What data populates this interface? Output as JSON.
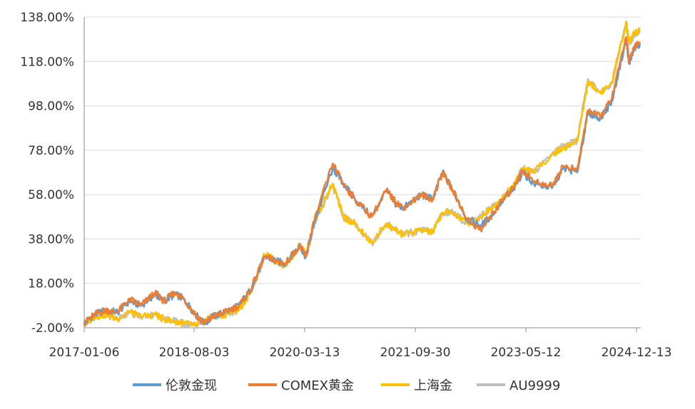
{
  "chart_data": {
    "type": "line",
    "xlabel": "",
    "ylabel": "",
    "x_ticks": [
      "2017-01-06",
      "2018-08-03",
      "2020-03-13",
      "2021-09-30",
      "2023-05-12",
      "2024-12-13"
    ],
    "y_ticks": [
      "-2.00%",
      "18.00%",
      "38.00%",
      "58.00%",
      "78.00%",
      "98.00%",
      "118.00%",
      "138.00%"
    ],
    "ylim": [
      -2,
      138
    ],
    "xlim": [
      "2017-01-06",
      "2025-01-15"
    ],
    "grid": "horizontal",
    "legend": "bottom",
    "series": [
      {
        "name": "伦敦金现",
        "color": "#5b9bd5",
        "points": [
          [
            "2017-01-06",
            0
          ],
          [
            "2017-03-01",
            4
          ],
          [
            "2017-05-01",
            6
          ],
          [
            "2017-07-01",
            5
          ],
          [
            "2017-09-01",
            10
          ],
          [
            "2017-11-01",
            8
          ],
          [
            "2018-01-15",
            13
          ],
          [
            "2018-03-01",
            10
          ],
          [
            "2018-05-01",
            13
          ],
          [
            "2018-06-15",
            11
          ],
          [
            "2018-08-15",
            4
          ],
          [
            "2018-10-01",
            0
          ],
          [
            "2018-11-15",
            3
          ],
          [
            "2019-01-15",
            5
          ],
          [
            "2019-04-01",
            8
          ],
          [
            "2019-06-01",
            15
          ],
          [
            "2019-08-15",
            30
          ],
          [
            "2019-10-15",
            28
          ],
          [
            "2019-12-01",
            27
          ],
          [
            "2020-02-15",
            35
          ],
          [
            "2020-03-19",
            30
          ],
          [
            "2020-05-01",
            45
          ],
          [
            "2020-08-07",
            70
          ],
          [
            "2020-10-01",
            63
          ],
          [
            "2020-12-01",
            56
          ],
          [
            "2021-03-01",
            48
          ],
          [
            "2021-05-15",
            60
          ],
          [
            "2021-07-01",
            54
          ],
          [
            "2021-08-15",
            52
          ],
          [
            "2021-11-15",
            58
          ],
          [
            "2022-01-15",
            56
          ],
          [
            "2022-03-08",
            68
          ],
          [
            "2022-05-01",
            60
          ],
          [
            "2022-07-15",
            47
          ],
          [
            "2022-09-26",
            44
          ],
          [
            "2022-11-15",
            48
          ],
          [
            "2023-01-15",
            55
          ],
          [
            "2023-03-15",
            60
          ],
          [
            "2023-05-04",
            68
          ],
          [
            "2023-07-01",
            63
          ],
          [
            "2023-10-05",
            61
          ],
          [
            "2023-12-04",
            70
          ],
          [
            "2024-02-15",
            68
          ],
          [
            "2024-04-12",
            95
          ],
          [
            "2024-06-15",
            92
          ],
          [
            "2024-08-15",
            100
          ],
          [
            "2024-10-30",
            128
          ],
          [
            "2024-11-14",
            117
          ],
          [
            "2024-12-13",
            124
          ],
          [
            "2025-01-10",
            126
          ]
        ]
      },
      {
        "name": "COMEX黄金",
        "color": "#ed7d31",
        "points": [
          [
            "2017-01-06",
            0
          ],
          [
            "2017-03-01",
            4
          ],
          [
            "2017-05-01",
            6
          ],
          [
            "2017-07-01",
            5
          ],
          [
            "2017-09-01",
            11
          ],
          [
            "2017-11-01",
            8
          ],
          [
            "2018-01-15",
            14
          ],
          [
            "2018-03-01",
            10
          ],
          [
            "2018-05-01",
            14
          ],
          [
            "2018-06-15",
            11
          ],
          [
            "2018-08-15",
            4
          ],
          [
            "2018-10-01",
            0
          ],
          [
            "2018-11-15",
            3
          ],
          [
            "2019-01-15",
            5
          ],
          [
            "2019-04-01",
            8
          ],
          [
            "2019-06-01",
            15
          ],
          [
            "2019-08-15",
            30
          ],
          [
            "2019-10-15",
            28
          ],
          [
            "2019-12-01",
            27
          ],
          [
            "2020-02-15",
            35
          ],
          [
            "2020-03-19",
            30
          ],
          [
            "2020-05-01",
            46
          ],
          [
            "2020-08-07",
            72
          ],
          [
            "2020-10-01",
            63
          ],
          [
            "2020-12-01",
            56
          ],
          [
            "2021-03-01",
            48
          ],
          [
            "2021-05-15",
            60
          ],
          [
            "2021-07-01",
            55
          ],
          [
            "2021-08-15",
            52
          ],
          [
            "2021-11-15",
            58
          ],
          [
            "2022-01-15",
            56
          ],
          [
            "2022-03-08",
            68
          ],
          [
            "2022-05-01",
            60
          ],
          [
            "2022-07-15",
            47
          ],
          [
            "2022-09-26",
            42
          ],
          [
            "2022-11-15",
            48
          ],
          [
            "2023-01-15",
            55
          ],
          [
            "2023-03-15",
            61
          ],
          [
            "2023-05-04",
            69
          ],
          [
            "2023-07-01",
            64
          ],
          [
            "2023-10-05",
            62
          ],
          [
            "2023-12-04",
            71
          ],
          [
            "2024-02-15",
            69
          ],
          [
            "2024-04-12",
            96
          ],
          [
            "2024-06-15",
            93
          ],
          [
            "2024-08-15",
            101
          ],
          [
            "2024-10-30",
            129
          ],
          [
            "2024-11-14",
            118
          ],
          [
            "2024-12-13",
            125
          ],
          [
            "2025-01-10",
            127
          ]
        ]
      },
      {
        "name": "上海金",
        "color": "#ffc000",
        "points": [
          [
            "2017-01-06",
            0
          ],
          [
            "2017-03-01",
            3
          ],
          [
            "2017-05-01",
            4
          ],
          [
            "2017-07-01",
            2
          ],
          [
            "2017-09-01",
            5
          ],
          [
            "2017-11-01",
            3
          ],
          [
            "2018-01-15",
            4
          ],
          [
            "2018-03-01",
            2
          ],
          [
            "2018-05-01",
            1
          ],
          [
            "2018-06-15",
            0
          ],
          [
            "2018-08-15",
            -1
          ],
          [
            "2018-10-01",
            1
          ],
          [
            "2018-11-15",
            3
          ],
          [
            "2019-01-15",
            4
          ],
          [
            "2019-04-01",
            6
          ],
          [
            "2019-06-01",
            14
          ],
          [
            "2019-08-15",
            31
          ],
          [
            "2019-10-15",
            28
          ],
          [
            "2019-12-01",
            26
          ],
          [
            "2020-02-15",
            35
          ],
          [
            "2020-03-19",
            31
          ],
          [
            "2020-05-01",
            46
          ],
          [
            "2020-08-07",
            63
          ],
          [
            "2020-10-01",
            48
          ],
          [
            "2020-12-01",
            45
          ],
          [
            "2021-03-01",
            36
          ],
          [
            "2021-05-15",
            45
          ],
          [
            "2021-07-01",
            42
          ],
          [
            "2021-08-15",
            40
          ],
          [
            "2021-11-15",
            42
          ],
          [
            "2022-01-15",
            41
          ],
          [
            "2022-03-08",
            50
          ],
          [
            "2022-05-01",
            50
          ],
          [
            "2022-07-15",
            45
          ],
          [
            "2022-09-26",
            48
          ],
          [
            "2022-11-15",
            52
          ],
          [
            "2023-01-15",
            56
          ],
          [
            "2023-03-15",
            62
          ],
          [
            "2023-05-04",
            70
          ],
          [
            "2023-07-01",
            68
          ],
          [
            "2023-10-05",
            76
          ],
          [
            "2023-12-04",
            79
          ],
          [
            "2024-02-15",
            82
          ],
          [
            "2024-04-12",
            109
          ],
          [
            "2024-06-15",
            104
          ],
          [
            "2024-08-15",
            108
          ],
          [
            "2024-10-30",
            136
          ],
          [
            "2024-11-14",
            127
          ],
          [
            "2024-12-13",
            131
          ],
          [
            "2025-01-10",
            132
          ]
        ]
      },
      {
        "name": "AU9999",
        "color": "#bfbfbf",
        "points": [
          [
            "2017-01-06",
            0
          ],
          [
            "2017-03-01",
            3
          ],
          [
            "2017-05-01",
            4
          ],
          [
            "2017-07-01",
            2
          ],
          [
            "2017-09-01",
            5
          ],
          [
            "2017-11-01",
            3
          ],
          [
            "2018-01-15",
            4
          ],
          [
            "2018-03-01",
            2
          ],
          [
            "2018-05-01",
            1
          ],
          [
            "2018-06-15",
            0
          ],
          [
            "2018-08-15",
            -1
          ],
          [
            "2018-10-01",
            1
          ],
          [
            "2018-11-15",
            3
          ],
          [
            "2019-01-15",
            4
          ],
          [
            "2019-04-01",
            6
          ],
          [
            "2019-06-01",
            14
          ],
          [
            "2019-08-15",
            30
          ],
          [
            "2019-10-15",
            28
          ],
          [
            "2019-12-01",
            26
          ],
          [
            "2020-02-15",
            35
          ],
          [
            "2020-03-19",
            30
          ],
          [
            "2020-05-01",
            45
          ],
          [
            "2020-08-07",
            62
          ],
          [
            "2020-10-01",
            48
          ],
          [
            "2020-12-01",
            45
          ],
          [
            "2021-03-01",
            36
          ],
          [
            "2021-05-15",
            45
          ],
          [
            "2021-07-01",
            42
          ],
          [
            "2021-08-15",
            40
          ],
          [
            "2021-11-15",
            42
          ],
          [
            "2022-01-15",
            41
          ],
          [
            "2022-03-08",
            50
          ],
          [
            "2022-05-01",
            50
          ],
          [
            "2022-07-15",
            45
          ],
          [
            "2022-09-26",
            48
          ],
          [
            "2022-11-15",
            52
          ],
          [
            "2023-01-15",
            56
          ],
          [
            "2023-03-15",
            62
          ],
          [
            "2023-05-04",
            70
          ],
          [
            "2023-07-01",
            68
          ],
          [
            "2023-10-05",
            76
          ],
          [
            "2023-12-04",
            80
          ],
          [
            "2024-02-15",
            82
          ],
          [
            "2024-04-12",
            110
          ],
          [
            "2024-06-15",
            104
          ],
          [
            "2024-08-15",
            108
          ],
          [
            "2024-10-30",
            135
          ],
          [
            "2024-11-14",
            126
          ],
          [
            "2024-12-13",
            130
          ],
          [
            "2025-01-10",
            131
          ]
        ]
      }
    ]
  }
}
